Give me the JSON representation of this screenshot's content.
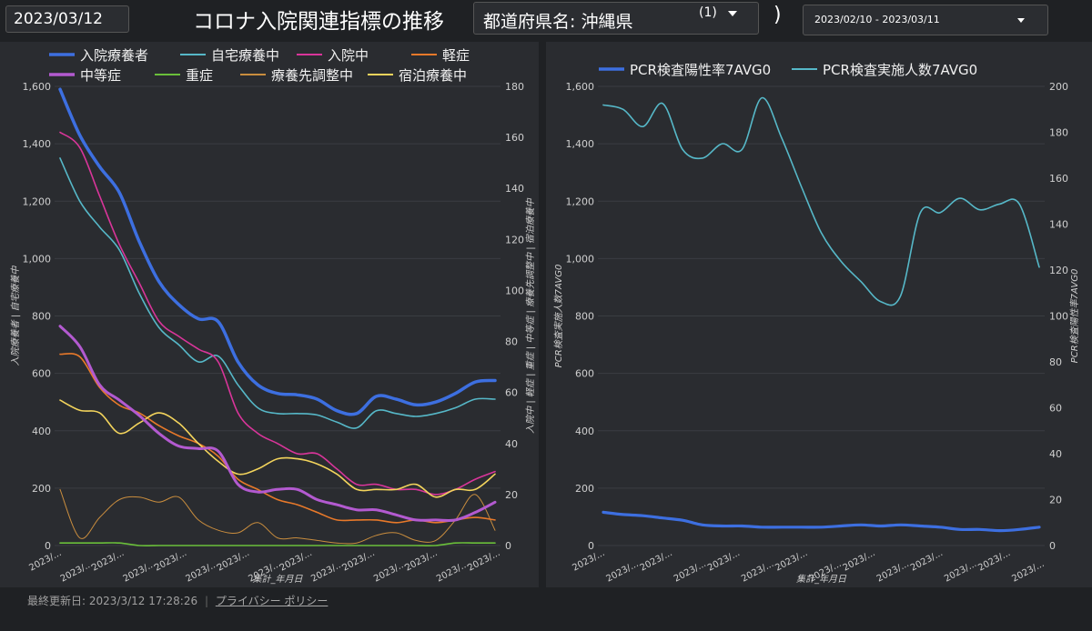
{
  "header": {
    "date": "2023/03/12",
    "title": "コロナ入院関連指標の推移",
    "pref_label": "都道府県名: 沖縄県",
    "pref_count": "(1)",
    "paren": ")",
    "date_range": "2023/02/10 - 2023/03/11"
  },
  "footer": {
    "updated": "最終更新日: 2023/3/12 17:28:26",
    "separator": "|",
    "privacy": "プライバシー ポリシー"
  },
  "colors": {
    "blue": "#3d6fe0",
    "teal": "#56b8c8",
    "pink": "#d9359a",
    "orange": "#e8792a",
    "purple": "#b35ad0",
    "green": "#6abf3a",
    "brown": "#c98d3e",
    "yellow": "#f3d45c"
  },
  "chart_data": [
    {
      "type": "line",
      "xlabel": "集計_年月日",
      "x_tick_labels": [
        "2023/...",
        "2023/...",
        "2023/...",
        "2023/...",
        "2023/...",
        "2023/...",
        "2023/...",
        "2023/...",
        "2023/...",
        "2023/...",
        "2023/...",
        "2023/...",
        "2023/...",
        "2023/...",
        "2023/..."
      ],
      "ylabel_left": "入院療養者 | 自宅療養中",
      "ylabel_right": "入院中 | 軽症 | 重症 | 中等症 | 療養先調整中 | 宿泊療養中",
      "ylim_left": [
        0,
        1600
      ],
      "ylim_right": [
        0,
        180
      ],
      "yticks_left": [
        "0",
        "200",
        "400",
        "600",
        "800",
        "1,000",
        "1,200",
        "1,400",
        "1,600"
      ],
      "yticks_right": [
        "0",
        "20",
        "40",
        "60",
        "80",
        "100",
        "120",
        "140",
        "160",
        "180"
      ],
      "legend_position": "top",
      "series": [
        {
          "name": "入院療養者",
          "axis": "left",
          "color": "#3d6fe0",
          "width": 3.5,
          "values": [
            1590,
            1430,
            1320,
            1230,
            1060,
            920,
            840,
            790,
            780,
            640,
            560,
            530,
            525,
            510,
            470,
            460,
            520,
            510,
            490,
            500,
            530,
            570,
            575
          ]
        },
        {
          "name": "自宅療養中",
          "axis": "left",
          "color": "#56b8c8",
          "width": 1.6,
          "values": [
            1350,
            1200,
            1110,
            1030,
            880,
            760,
            700,
            640,
            660,
            560,
            480,
            460,
            460,
            455,
            430,
            410,
            470,
            460,
            450,
            460,
            480,
            510,
            510
          ]
        },
        {
          "name": "入院中",
          "axis": "right",
          "color": "#d9359a",
          "width": 1.6,
          "values": [
            162,
            156,
            137,
            118,
            103,
            88,
            82,
            77,
            72,
            52,
            44,
            40,
            36,
            36,
            30,
            24,
            24,
            22,
            22,
            20,
            22,
            26,
            29
          ]
        },
        {
          "name": "軽症",
          "axis": "right",
          "color": "#e8792a",
          "width": 1.6,
          "values": [
            75,
            74,
            62,
            55,
            52,
            47,
            43,
            40,
            35,
            26,
            22,
            18,
            16,
            13,
            10,
            10,
            10,
            9,
            10,
            9,
            10,
            11,
            10
          ]
        },
        {
          "name": "中等症",
          "axis": "right",
          "color": "#b35ad0",
          "width": 3.0,
          "values": [
            86,
            78,
            63,
            57,
            51,
            44,
            39,
            38,
            37,
            24,
            21,
            22,
            22,
            18,
            16,
            14,
            14,
            12,
            10,
            10,
            10,
            13,
            17
          ]
        },
        {
          "name": "重症",
          "axis": "right",
          "color": "#6abf3a",
          "width": 1.6,
          "values": [
            1,
            1,
            1,
            1,
            0,
            0,
            0,
            0,
            0,
            0,
            0,
            0,
            0,
            0,
            0,
            0,
            0,
            0,
            0,
            0,
            1,
            1,
            1
          ]
        },
        {
          "name": "療養先調整中",
          "axis": "right",
          "color": "#c98d3e",
          "width": 1.0,
          "values": [
            22,
            3,
            11,
            18,
            19,
            17,
            19,
            10,
            6,
            5,
            9,
            3,
            3,
            2,
            1,
            1,
            4,
            5,
            2,
            2,
            10,
            20,
            6
          ]
        },
        {
          "name": "宿泊療養中",
          "axis": "right",
          "color": "#f3d45c",
          "width": 1.6,
          "values": [
            57,
            53,
            52,
            44,
            48,
            52,
            48,
            40,
            33,
            28,
            30,
            34,
            34,
            32,
            28,
            22,
            22,
            22,
            24,
            19,
            22,
            22,
            28
          ]
        }
      ]
    },
    {
      "type": "line",
      "xlabel": "集計_年月日",
      "x_tick_labels": [
        "2023/...",
        "2023/...",
        "2023/...",
        "2023/...",
        "2023/...",
        "2023/...",
        "2023/...",
        "2023/...",
        "2023/...",
        "2023/...",
        "2023/...",
        "2023/...",
        "2023/...",
        "2023/..."
      ],
      "ylabel_left": "PCR検査実施人数7AVG0",
      "ylabel_right": "PCR検査陽性率7AVG0",
      "ylim_left": [
        0,
        1600
      ],
      "ylim_right": [
        0,
        200
      ],
      "yticks_left": [
        "0",
        "200",
        "400",
        "600",
        "800",
        "1,000",
        "1,200",
        "1,400",
        "1,600"
      ],
      "yticks_right": [
        "0",
        "20",
        "40",
        "60",
        "80",
        "100",
        "120",
        "140",
        "160",
        "180",
        "200"
      ],
      "legend_position": "top",
      "series": [
        {
          "name": "PCR検査陽性率7AVG0",
          "axis": "right",
          "color": "#3d6fe0",
          "width": 3.2,
          "values": [
            14.5,
            13.5,
            13,
            12,
            11,
            9,
            8.5,
            8.5,
            8,
            8,
            8,
            8,
            8.5,
            9,
            8.5,
            9,
            8.5,
            8,
            7,
            7,
            6.5,
            7,
            8
          ]
        },
        {
          "name": "PCR検査実施人数7AVG0",
          "axis": "left",
          "color": "#56b8c8",
          "width": 1.6,
          "values": [
            1535,
            1520,
            1460,
            1540,
            1380,
            1350,
            1400,
            1380,
            1560,
            1420,
            1250,
            1090,
            990,
            920,
            850,
            870,
            1160,
            1160,
            1210,
            1170,
            1190,
            1190,
            970
          ]
        }
      ]
    }
  ]
}
